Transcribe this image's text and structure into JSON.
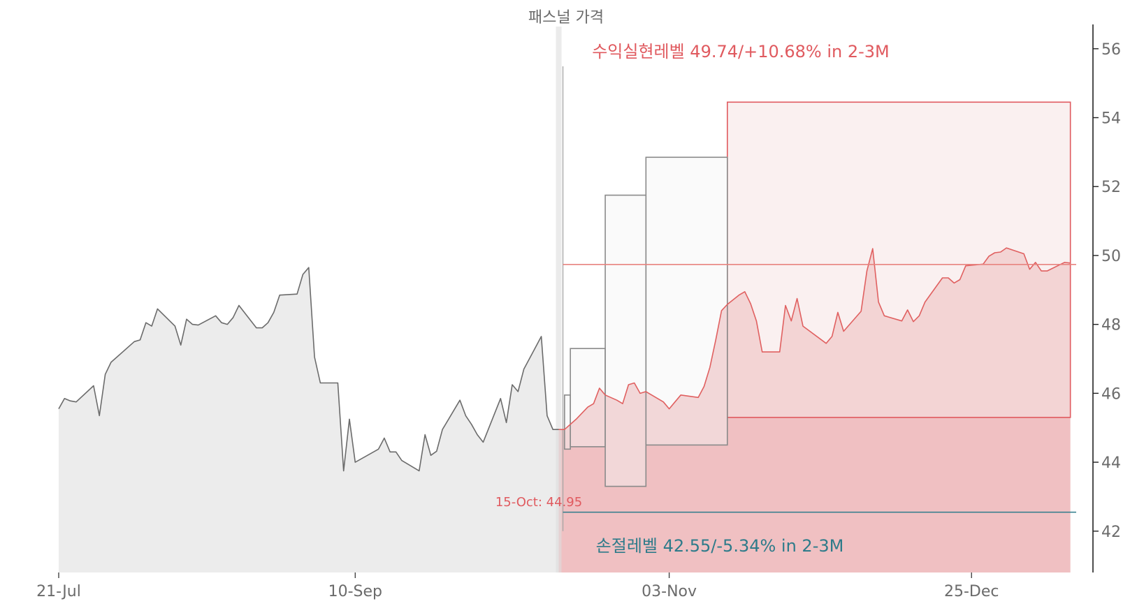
{
  "chart_data": {
    "type": "line",
    "title": "패스널 가격",
    "colors": {
      "history_line": "#6b6b6b",
      "history_fill": "#ececec",
      "forecast_line": "#e06060",
      "forecast_fill": "#f0c0c2",
      "zone_fill": "#f6e3e4",
      "zone_stroke": "#e05a5f",
      "box_stroke": "#8a8a8a",
      "box_fill": "#f4f4f4",
      "target_line": "#e8837f",
      "stop_line": "#2e7b8a",
      "annot_target": "#e05a5f",
      "annot_stop": "#2e7b8a",
      "axis_text": "#6b6b6b"
    },
    "x_axis": {
      "ticks": [
        {
          "date": "2024-07-21",
          "label": "21-Jul"
        },
        {
          "date": "2024-09-10",
          "label": "10-Sep"
        },
        {
          "date": "2024-11-03",
          "label": "03-Nov"
        },
        {
          "date": "2024-12-25",
          "label": "25-Dec"
        }
      ],
      "range": [
        "2024-07-21",
        "2025-01-12"
      ]
    },
    "y_axis": {
      "position": "right",
      "range": [
        40.8,
        56.3
      ],
      "ticks": [
        42,
        44,
        46,
        48,
        50,
        52,
        54,
        56
      ]
    },
    "history": [
      [
        "2024-07-21",
        45.55
      ],
      [
        "2024-07-22",
        45.85
      ],
      [
        "2024-07-23",
        45.78
      ],
      [
        "2024-07-24",
        45.75
      ],
      [
        "2024-07-27",
        46.22
      ],
      [
        "2024-07-28",
        45.35
      ],
      [
        "2024-07-29",
        46.55
      ],
      [
        "2024-07-30",
        46.9
      ],
      [
        "2024-08-03",
        47.5
      ],
      [
        "2024-08-04",
        47.55
      ],
      [
        "2024-08-05",
        48.05
      ],
      [
        "2024-08-06",
        47.95
      ],
      [
        "2024-08-07",
        48.45
      ],
      [
        "2024-08-10",
        47.95
      ],
      [
        "2024-08-11",
        47.4
      ],
      [
        "2024-08-12",
        48.15
      ],
      [
        "2024-08-13",
        48.0
      ],
      [
        "2024-08-14",
        47.98
      ],
      [
        "2024-08-17",
        48.25
      ],
      [
        "2024-08-18",
        48.05
      ],
      [
        "2024-08-19",
        48.0
      ],
      [
        "2024-08-20",
        48.2
      ],
      [
        "2024-08-21",
        48.55
      ],
      [
        "2024-08-24",
        47.9
      ],
      [
        "2024-08-25",
        47.9
      ],
      [
        "2024-08-26",
        48.05
      ],
      [
        "2024-08-27",
        48.35
      ],
      [
        "2024-08-28",
        48.85
      ],
      [
        "2024-08-31",
        48.88
      ],
      [
        "2024-09-01",
        49.45
      ],
      [
        "2024-09-02",
        49.65
      ],
      [
        "2024-09-03",
        47.05
      ],
      [
        "2024-09-04",
        46.3
      ],
      [
        "2024-09-07",
        46.3
      ],
      [
        "2024-09-08",
        43.75
      ],
      [
        "2024-09-09",
        45.25
      ],
      [
        "2024-09-10",
        44.0
      ],
      [
        "2024-09-14",
        44.38
      ],
      [
        "2024-09-15",
        44.7
      ],
      [
        "2024-09-16",
        44.3
      ],
      [
        "2024-09-17",
        44.3
      ],
      [
        "2024-09-18",
        44.05
      ],
      [
        "2024-09-21",
        43.75
      ],
      [
        "2024-09-22",
        44.8
      ],
      [
        "2024-09-23",
        44.2
      ],
      [
        "2024-09-24",
        44.32
      ],
      [
        "2024-09-25",
        44.95
      ],
      [
        "2024-09-28",
        45.8
      ],
      [
        "2024-09-29",
        45.35
      ],
      [
        "2024-09-30",
        45.1
      ],
      [
        "2024-10-01",
        44.8
      ],
      [
        "2024-10-02",
        44.58
      ],
      [
        "2024-10-05",
        45.85
      ],
      [
        "2024-10-06",
        45.15
      ],
      [
        "2024-10-07",
        46.25
      ],
      [
        "2024-10-08",
        46.05
      ],
      [
        "2024-10-09",
        46.7
      ],
      [
        "2024-10-12",
        47.65
      ],
      [
        "2024-10-13",
        45.35
      ],
      [
        "2024-10-14",
        44.95
      ],
      [
        "2024-10-15",
        44.95
      ]
    ],
    "forecast": [
      [
        "2024-10-15",
        44.95
      ],
      [
        "2024-10-16",
        44.95
      ],
      [
        "2024-10-18",
        45.25
      ],
      [
        "2024-10-20",
        45.6
      ],
      [
        "2024-10-21",
        45.7
      ],
      [
        "2024-10-22",
        46.15
      ],
      [
        "2024-10-23",
        45.95
      ],
      [
        "2024-10-25",
        45.8
      ],
      [
        "2024-10-26",
        45.7
      ],
      [
        "2024-10-27",
        46.25
      ],
      [
        "2024-10-28",
        46.3
      ],
      [
        "2024-10-29",
        46.0
      ],
      [
        "2024-10-30",
        46.05
      ],
      [
        "2024-11-02",
        45.75
      ],
      [
        "2024-11-03",
        45.55
      ],
      [
        "2024-11-04",
        45.75
      ],
      [
        "2024-11-05",
        45.95
      ],
      [
        "2024-11-08",
        45.88
      ],
      [
        "2024-11-09",
        46.2
      ],
      [
        "2024-11-10",
        46.75
      ],
      [
        "2024-11-11",
        47.55
      ],
      [
        "2024-11-12",
        48.4
      ],
      [
        "2024-11-13",
        48.58
      ],
      [
        "2024-11-15",
        48.85
      ],
      [
        "2024-11-16",
        48.95
      ],
      [
        "2024-11-17",
        48.6
      ],
      [
        "2024-11-18",
        48.1
      ],
      [
        "2024-11-19",
        47.2
      ],
      [
        "2024-11-22",
        47.2
      ],
      [
        "2024-11-23",
        48.55
      ],
      [
        "2024-11-24",
        48.1
      ],
      [
        "2024-11-25",
        48.75
      ],
      [
        "2024-11-26",
        47.95
      ],
      [
        "2024-11-30",
        47.45
      ],
      [
        "2024-12-01",
        47.65
      ],
      [
        "2024-12-02",
        48.35
      ],
      [
        "2024-12-03",
        47.8
      ],
      [
        "2024-12-06",
        48.38
      ],
      [
        "2024-12-07",
        49.55
      ],
      [
        "2024-12-08",
        50.2
      ],
      [
        "2024-12-09",
        48.65
      ],
      [
        "2024-12-10",
        48.25
      ],
      [
        "2024-12-13",
        48.1
      ],
      [
        "2024-12-14",
        48.42
      ],
      [
        "2024-12-15",
        48.08
      ],
      [
        "2024-12-16",
        48.25
      ],
      [
        "2024-12-17",
        48.65
      ],
      [
        "2024-12-20",
        49.35
      ],
      [
        "2024-12-21",
        49.35
      ],
      [
        "2024-12-22",
        49.2
      ],
      [
        "2024-12-23",
        49.3
      ],
      [
        "2024-12-24",
        49.7
      ],
      [
        "2024-12-27",
        49.75
      ],
      [
        "2024-12-28",
        49.98
      ],
      [
        "2024-12-29",
        50.08
      ],
      [
        "2024-12-30",
        50.1
      ],
      [
        "2024-12-31",
        50.22
      ],
      [
        "2025-01-03",
        50.05
      ],
      [
        "2025-01-04",
        49.6
      ],
      [
        "2025-01-05",
        49.8
      ],
      [
        "2025-01-06",
        49.55
      ],
      [
        "2025-01-07",
        49.55
      ],
      [
        "2025-01-10",
        49.8
      ],
      [
        "2025-01-11",
        49.78
      ]
    ],
    "boxes": [
      {
        "start": "2024-10-16",
        "end": "2024-10-17",
        "low": 44.38,
        "high": 45.95
      },
      {
        "start": "2024-10-17",
        "end": "2024-10-23",
        "low": 44.45,
        "high": 47.3
      },
      {
        "start": "2024-10-23",
        "end": "2024-10-30",
        "low": 43.3,
        "high": 51.75
      },
      {
        "start": "2024-10-30",
        "end": "2024-11-13",
        "low": 44.5,
        "high": 52.85
      }
    ],
    "zone": {
      "start": "2024-11-13",
      "end": "2025-01-11",
      "low": 45.3,
      "high": 54.45
    },
    "target": {
      "value": 49.74,
      "start": "2024-10-15",
      "end": "2025-01-12",
      "label": "수익실현레벨 49.74/+10.68% in 2-3M"
    },
    "stop": {
      "value": 42.55,
      "start": "2024-10-15",
      "end": "2025-01-12",
      "label": "손절레벨 42.55/-5.34% in 2-3M"
    },
    "forecast_area_end": "2025-01-11",
    "marker": {
      "date": "2024-10-15",
      "value": 44.95,
      "label": "15-Oct: 44.95"
    }
  }
}
